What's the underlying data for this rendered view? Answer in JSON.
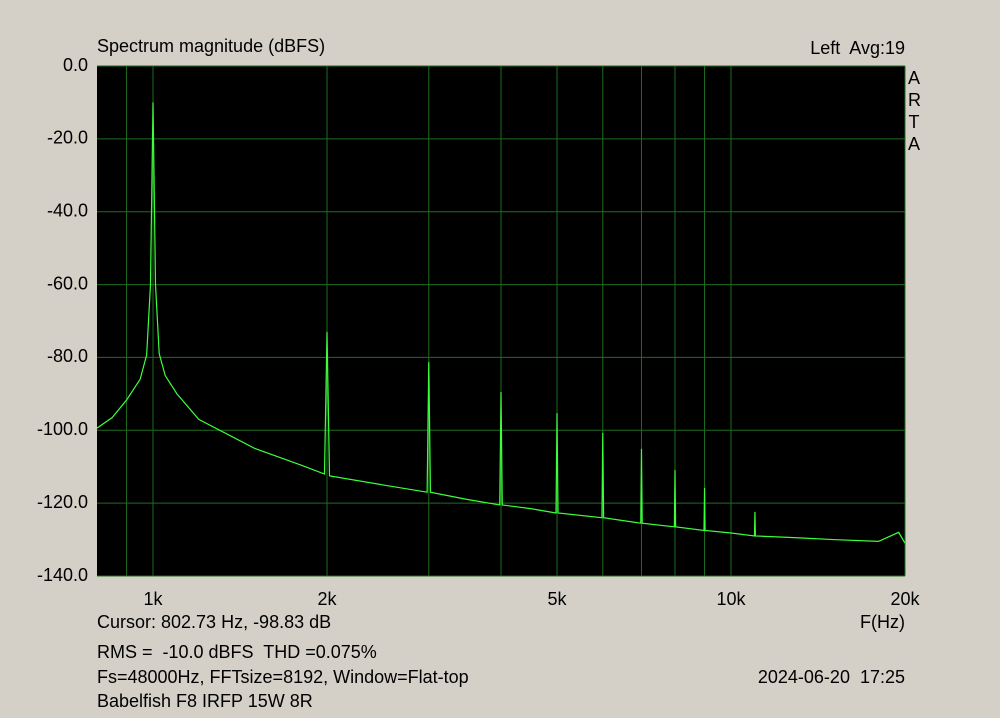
{
  "chart_data": {
    "type": "line",
    "title": "Spectrum magnitude (dBFS)",
    "channel": "Left  Avg:19",
    "watermark": "ARTA",
    "xlabel": "F(Hz)",
    "xscale": "log",
    "xlim": [
      800,
      20000
    ],
    "xticks": [
      {
        "value": 1000,
        "label": "1k"
      },
      {
        "value": 2000,
        "label": "2k"
      },
      {
        "value": 5000,
        "label": "5k"
      },
      {
        "value": 10000,
        "label": "10k"
      },
      {
        "value": 20000,
        "label": "20k"
      }
    ],
    "xgrid": [
      900,
      3000,
      4000,
      6000,
      7000,
      8000,
      9000
    ],
    "ylim": [
      -140,
      0
    ],
    "yticks": [
      {
        "value": 0,
        "label": "0.0"
      },
      {
        "value": -20,
        "label": "-20.0"
      },
      {
        "value": -40,
        "label": "-40.0"
      },
      {
        "value": -60,
        "label": "-60.0"
      },
      {
        "value": -80,
        "label": "-80.0"
      },
      {
        "value": -100,
        "label": "-100.0"
      },
      {
        "value": -120,
        "label": "-120.0"
      },
      {
        "value": -140,
        "label": "-140.0"
      }
    ],
    "grid": true,
    "grid_color": "#1e6e1e",
    "color": "#3cff3c",
    "x": [
      800,
      850,
      900,
      950,
      975,
      990,
      1000,
      1010,
      1025,
      1050,
      1100,
      1200,
      1500,
      1800,
      1980,
      2000,
      2020,
      2500,
      2980,
      3000,
      3020,
      3500,
      3980,
      4000,
      4020,
      4500,
      4980,
      5000,
      5020,
      5980,
      6000,
      6020,
      6980,
      7000,
      7020,
      7980,
      8000,
      8020,
      8980,
      9000,
      9020,
      10000,
      10980,
      11000,
      11020,
      13000,
      15000,
      18000,
      19500,
      20000
    ],
    "values": [
      -99.4,
      -96.5,
      -91.7,
      -86,
      -79.3,
      -60,
      -10,
      -60,
      -79,
      -85,
      -90,
      -97,
      -105,
      -109.5,
      -112,
      -73,
      -112.5,
      -115,
      -117,
      -81.3,
      -117,
      -119,
      -120.5,
      -89.5,
      -120.5,
      -121.5,
      -122.7,
      -95.3,
      -122.7,
      -124,
      -100.7,
      -124,
      -125.5,
      -105.1,
      -125.5,
      -126.5,
      -110.9,
      -126.5,
      -127.5,
      -115.8,
      -127.5,
      -128.2,
      -129,
      -122.4,
      -129,
      -129.5,
      -130,
      -130.5,
      -128,
      -131
    ],
    "annotations": [
      {
        "text": "Cursor: 802.73 Hz, -98.83 dB",
        "color": "#000000"
      },
      {
        "text": "RMS =  -10.0 dBFS  THD =0.075%",
        "color": "#e00000"
      },
      {
        "text": "Fs=48000Hz, FFTsize=8192, Window=Flat-top",
        "color": "#000000"
      },
      {
        "text": "Babelfish F8 IRFP 15W 8R",
        "color": "#000000"
      }
    ],
    "timestamp": "2024-06-20  17:25"
  }
}
